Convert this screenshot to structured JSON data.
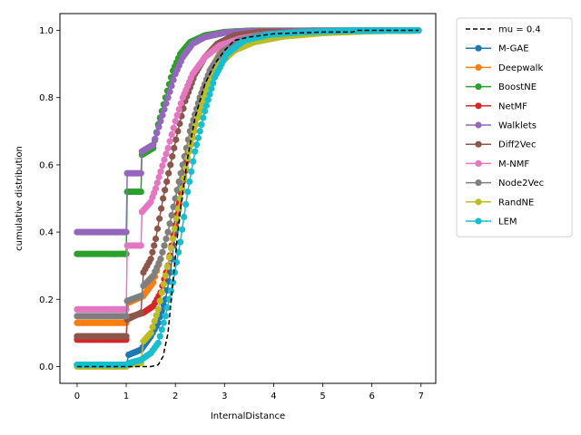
{
  "chart_data": {
    "type": "line",
    "title": "",
    "xlabel": "InternalDistance",
    "ylabel": "cumulative distribution",
    "xlim": [
      -0.35,
      7.3
    ],
    "ylim": [
      -0.05,
      1.05
    ],
    "x_ticks": [
      0,
      1,
      2,
      3,
      4,
      5,
      6,
      7
    ],
    "y_ticks": [
      0.0,
      0.2,
      0.4,
      0.6,
      0.8,
      1.0
    ],
    "x_tick_labels": [
      "0",
      "1",
      "2",
      "3",
      "4",
      "5",
      "6",
      "7"
    ],
    "y_tick_labels": [
      "0.0",
      "0.2",
      "0.4",
      "0.6",
      "0.8",
      "1.0"
    ],
    "grid": false,
    "legend_position": "outside-right",
    "reference": {
      "name": "mu = 0.4",
      "color": "#000000",
      "style": "dashed",
      "points": [
        [
          0,
          0.0
        ],
        [
          1.0,
          0.0
        ],
        [
          1.5,
          0.0
        ],
        [
          1.65,
          0.005
        ],
        [
          1.75,
          0.03
        ],
        [
          1.85,
          0.1
        ],
        [
          1.95,
          0.25
        ],
        [
          2.05,
          0.4
        ],
        [
          2.15,
          0.52
        ],
        [
          2.25,
          0.62
        ],
        [
          2.4,
          0.74
        ],
        [
          2.6,
          0.84
        ],
        [
          2.8,
          0.9
        ],
        [
          3.0,
          0.94
        ],
        [
          3.2,
          0.97
        ],
        [
          3.5,
          0.98
        ],
        [
          4.0,
          0.99
        ],
        [
          5.0,
          0.995
        ],
        [
          5.6,
          0.995
        ],
        [
          5.7,
          1.0
        ],
        [
          6.95,
          1.0
        ]
      ]
    },
    "series": [
      {
        "name": "M-GAE",
        "color": "#1f77b4",
        "points": [
          [
            0,
            0.005
          ],
          [
            1.0,
            0.005
          ],
          [
            1.05,
            0.035
          ],
          [
            1.3,
            0.05
          ],
          [
            1.5,
            0.09
          ],
          [
            1.65,
            0.13
          ],
          [
            1.8,
            0.2
          ],
          [
            1.9,
            0.28
          ],
          [
            2.0,
            0.4
          ],
          [
            2.1,
            0.5
          ],
          [
            2.2,
            0.6
          ],
          [
            2.35,
            0.7
          ],
          [
            2.5,
            0.79
          ],
          [
            2.7,
            0.87
          ],
          [
            2.9,
            0.93
          ],
          [
            3.2,
            0.97
          ],
          [
            3.6,
            0.985
          ],
          [
            4.2,
            0.995
          ],
          [
            5.0,
            0.998
          ],
          [
            6.95,
            1.0
          ]
        ]
      },
      {
        "name": "Deepwalk",
        "color": "#ff7f0e",
        "points": [
          [
            0,
            0.13
          ],
          [
            1.0,
            0.13
          ],
          [
            1.05,
            0.19
          ],
          [
            1.35,
            0.21
          ],
          [
            1.55,
            0.25
          ],
          [
            1.7,
            0.32
          ],
          [
            1.85,
            0.4
          ],
          [
            2.0,
            0.5
          ],
          [
            2.15,
            0.6
          ],
          [
            2.3,
            0.7
          ],
          [
            2.5,
            0.8
          ],
          [
            2.7,
            0.88
          ],
          [
            2.95,
            0.94
          ],
          [
            3.3,
            0.975
          ],
          [
            3.8,
            0.99
          ],
          [
            4.5,
            0.997
          ],
          [
            6.95,
            1.0
          ]
        ]
      },
      {
        "name": "BoostNE",
        "color": "#2ca02c",
        "points": [
          [
            0,
            0.335
          ],
          [
            1.0,
            0.335
          ],
          [
            1.02,
            0.52
          ],
          [
            1.3,
            0.52
          ],
          [
            1.32,
            0.63
          ],
          [
            1.55,
            0.65
          ],
          [
            1.65,
            0.72
          ],
          [
            1.8,
            0.8
          ],
          [
            1.95,
            0.88
          ],
          [
            2.1,
            0.93
          ],
          [
            2.3,
            0.965
          ],
          [
            2.6,
            0.985
          ],
          [
            3.0,
            0.995
          ],
          [
            3.5,
            0.999
          ],
          [
            6.95,
            1.0
          ]
        ]
      },
      {
        "name": "NetMF",
        "color": "#d62728",
        "points": [
          [
            0,
            0.08
          ],
          [
            1.0,
            0.08
          ],
          [
            1.02,
            0.145
          ],
          [
            1.35,
            0.16
          ],
          [
            1.55,
            0.18
          ],
          [
            1.7,
            0.22
          ],
          [
            1.85,
            0.3
          ],
          [
            2.0,
            0.42
          ],
          [
            2.15,
            0.55
          ],
          [
            2.3,
            0.67
          ],
          [
            2.5,
            0.78
          ],
          [
            2.7,
            0.87
          ],
          [
            2.95,
            0.93
          ],
          [
            3.3,
            0.97
          ],
          [
            3.8,
            0.99
          ],
          [
            4.5,
            0.997
          ],
          [
            6.95,
            1.0
          ]
        ]
      },
      {
        "name": "Walklets",
        "color": "#9467bd",
        "points": [
          [
            0,
            0.4
          ],
          [
            1.0,
            0.4
          ],
          [
            1.02,
            0.575
          ],
          [
            1.3,
            0.575
          ],
          [
            1.32,
            0.64
          ],
          [
            1.55,
            0.66
          ],
          [
            1.7,
            0.73
          ],
          [
            1.85,
            0.8
          ],
          [
            2.0,
            0.87
          ],
          [
            2.15,
            0.92
          ],
          [
            2.35,
            0.96
          ],
          [
            2.6,
            0.98
          ],
          [
            3.0,
            0.993
          ],
          [
            3.5,
            0.998
          ],
          [
            6.95,
            1.0
          ]
        ]
      },
      {
        "name": "Diff2Vec",
        "color": "#8c564b",
        "points": [
          [
            0,
            0.09
          ],
          [
            1.0,
            0.09
          ],
          [
            1.02,
            0.14
          ],
          [
            1.3,
            0.16
          ],
          [
            1.35,
            0.28
          ],
          [
            1.5,
            0.32
          ],
          [
            1.6,
            0.38
          ],
          [
            1.75,
            0.5
          ],
          [
            1.9,
            0.6
          ],
          [
            2.05,
            0.7
          ],
          [
            2.2,
            0.79
          ],
          [
            2.4,
            0.87
          ],
          [
            2.6,
            0.92
          ],
          [
            2.85,
            0.96
          ],
          [
            3.2,
            0.985
          ],
          [
            3.7,
            0.995
          ],
          [
            6.95,
            1.0
          ]
        ]
      },
      {
        "name": "M-NMF",
        "color": "#e377c2",
        "points": [
          [
            0,
            0.17
          ],
          [
            1.0,
            0.17
          ],
          [
            1.02,
            0.36
          ],
          [
            1.3,
            0.36
          ],
          [
            1.32,
            0.46
          ],
          [
            1.5,
            0.49
          ],
          [
            1.6,
            0.53
          ],
          [
            1.7,
            0.58
          ],
          [
            1.85,
            0.65
          ],
          [
            2.0,
            0.73
          ],
          [
            2.15,
            0.8
          ],
          [
            2.35,
            0.87
          ],
          [
            2.6,
            0.92
          ],
          [
            2.9,
            0.955
          ],
          [
            3.3,
            0.975
          ],
          [
            3.8,
            0.988
          ],
          [
            4.5,
            0.996
          ],
          [
            6.95,
            1.0
          ]
        ]
      },
      {
        "name": "Node2Vec",
        "color": "#7f7f7f",
        "points": [
          [
            0,
            0.15
          ],
          [
            1.0,
            0.15
          ],
          [
            1.02,
            0.195
          ],
          [
            1.3,
            0.21
          ],
          [
            1.35,
            0.24
          ],
          [
            1.55,
            0.27
          ],
          [
            1.7,
            0.32
          ],
          [
            1.85,
            0.4
          ],
          [
            2.0,
            0.5
          ],
          [
            2.15,
            0.6
          ],
          [
            2.3,
            0.7
          ],
          [
            2.5,
            0.8
          ],
          [
            2.7,
            0.88
          ],
          [
            2.95,
            0.935
          ],
          [
            3.3,
            0.97
          ],
          [
            3.8,
            0.988
          ],
          [
            4.5,
            0.996
          ],
          [
            6.95,
            1.0
          ]
        ]
      },
      {
        "name": "RandNE",
        "color": "#bcbd22",
        "points": [
          [
            0,
            0.0
          ],
          [
            1.0,
            0.0
          ],
          [
            1.05,
            0.005
          ],
          [
            1.3,
            0.01
          ],
          [
            1.35,
            0.075
          ],
          [
            1.5,
            0.1
          ],
          [
            1.65,
            0.17
          ],
          [
            1.8,
            0.27
          ],
          [
            1.95,
            0.38
          ],
          [
            2.1,
            0.5
          ],
          [
            2.25,
            0.62
          ],
          [
            2.45,
            0.74
          ],
          [
            2.65,
            0.83
          ],
          [
            2.9,
            0.9
          ],
          [
            3.2,
            0.94
          ],
          [
            3.6,
            0.965
          ],
          [
            4.2,
            0.982
          ],
          [
            5.0,
            0.992
          ],
          [
            6.0,
            0.998
          ],
          [
            6.95,
            1.0
          ]
        ]
      },
      {
        "name": "LEM",
        "color": "#17becf",
        "points": [
          [
            0,
            0.005
          ],
          [
            1.0,
            0.005
          ],
          [
            1.05,
            0.01
          ],
          [
            1.3,
            0.02
          ],
          [
            1.5,
            0.04
          ],
          [
            1.65,
            0.07
          ],
          [
            1.8,
            0.15
          ],
          [
            1.95,
            0.25
          ],
          [
            2.1,
            0.37
          ],
          [
            2.25,
            0.52
          ],
          [
            2.4,
            0.64
          ],
          [
            2.6,
            0.76
          ],
          [
            2.8,
            0.86
          ],
          [
            3.05,
            0.93
          ],
          [
            3.4,
            0.97
          ],
          [
            3.9,
            0.987
          ],
          [
            4.6,
            0.995
          ],
          [
            5.5,
            0.999
          ],
          [
            6.95,
            1.0
          ]
        ]
      }
    ]
  }
}
